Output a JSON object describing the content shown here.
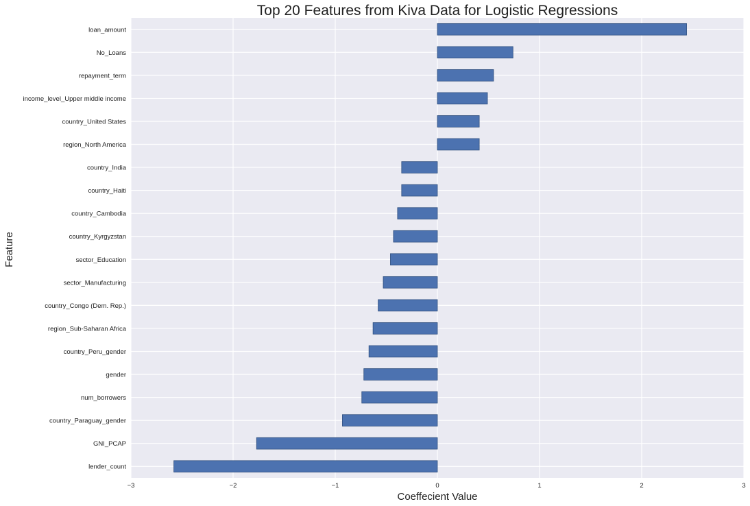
{
  "chart_data": {
    "type": "bar",
    "orientation": "horizontal",
    "title": "Top 20 Features from Kiva Data for Logistic Regressions",
    "xlabel": "Coeffecient Value",
    "ylabel": "Feature",
    "xlim": [
      -3,
      3
    ],
    "xticks": [
      -3,
      -2,
      -1,
      0,
      1,
      2,
      3
    ],
    "grid": true,
    "colors": {
      "bar": "#4c72b0",
      "bar_edge": "#2f4f7f",
      "background": "#eaeaf2",
      "grid": "#ffffff"
    },
    "categories": [
      "loan_amount",
      "No_Loans",
      "repayment_term",
      "income_level_Upper middle income",
      "country_United States",
      "region_North America",
      "country_India",
      "country_Haiti",
      "country_Cambodia",
      "country_Kyrgyzstan",
      "sector_Education",
      "sector_Manufacturing",
      "country_Congo (Dem. Rep.)",
      "region_Sub-Saharan Africa",
      "country_Peru_gender",
      "gender",
      "num_borrowers",
      "country_Paraguay_gender",
      "GNI_PCAP",
      "lender_count"
    ],
    "values": [
      2.44,
      0.74,
      0.55,
      0.49,
      0.41,
      0.41,
      -0.35,
      -0.35,
      -0.39,
      -0.43,
      -0.46,
      -0.53,
      -0.58,
      -0.63,
      -0.67,
      -0.72,
      -0.74,
      -0.93,
      -1.77,
      -2.58
    ]
  }
}
